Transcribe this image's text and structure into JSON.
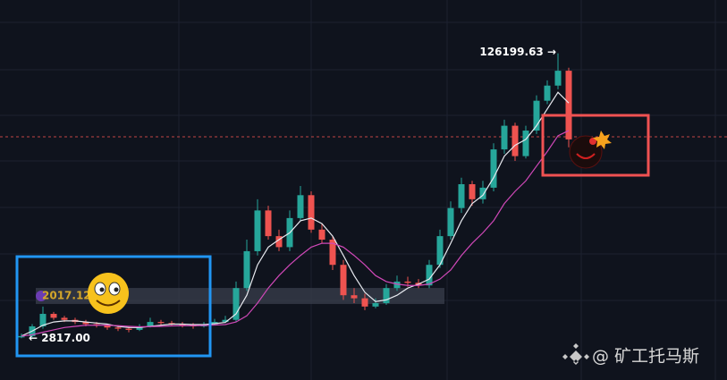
{
  "chart_data": {
    "type": "candlestick",
    "categories": [
      null,
      null,
      null,
      null,
      null,
      null,
      null,
      null,
      null,
      null,
      null,
      null,
      null,
      null,
      null,
      null,
      null,
      null,
      null,
      null,
      null,
      null,
      null,
      null,
      null,
      null,
      null,
      null,
      null,
      null,
      null,
      null,
      null,
      null,
      null,
      null,
      null,
      null,
      null,
      null,
      null,
      null,
      null,
      null,
      null,
      null,
      null,
      null,
      null,
      null,
      null,
      null
    ],
    "open": [
      2850,
      2900,
      3300,
      3900,
      3700,
      3600,
      3500,
      3400,
      3350,
      3250,
      3200,
      3150,
      3300,
      3500,
      3450,
      3400,
      3350,
      3300,
      3400,
      3500,
      3600,
      5500,
      9000,
      15500,
      11000,
      9500,
      14000,
      19000,
      12000,
      10500,
      7500,
      5000,
      4800,
      4300,
      4500,
      5500,
      6000,
      5900,
      5700,
      7500,
      11000,
      16000,
      22000,
      18000,
      21000,
      35000,
      48000,
      32000,
      45000,
      67000,
      82000,
      100000
    ],
    "high": [
      3000,
      3400,
      4300,
      4000,
      3800,
      3700,
      3600,
      3500,
      3400,
      3350,
      3300,
      3400,
      3700,
      3600,
      3550,
      3500,
      3450,
      3500,
      3650,
      3800,
      6000,
      10500,
      18000,
      16500,
      12000,
      15500,
      21500,
      20000,
      13000,
      11000,
      8000,
      5500,
      5100,
      4800,
      5800,
      6500,
      6400,
      6200,
      8000,
      12000,
      17500,
      24000,
      23000,
      23000,
      38000,
      52000,
      50000,
      48000,
      72000,
      88000,
      126199.63,
      104000
    ],
    "low": [
      2817,
      2850,
      3200,
      3600,
      3500,
      3400,
      3300,
      3250,
      3150,
      3100,
      3050,
      3100,
      3250,
      3350,
      3300,
      3250,
      3200,
      3250,
      3350,
      3450,
      3500,
      5300,
      8500,
      10500,
      9000,
      9000,
      13500,
      11500,
      10000,
      7000,
      4700,
      4500,
      4100,
      4200,
      4400,
      5300,
      5600,
      5500,
      5500,
      7200,
      10500,
      15000,
      16500,
      17000,
      20000,
      33000,
      30000,
      31000,
      43000,
      64000,
      78000,
      36000
    ],
    "close": [
      2900,
      3300,
      3900,
      3700,
      3600,
      3500,
      3400,
      3350,
      3250,
      3200,
      3150,
      3300,
      3500,
      3450,
      3400,
      3350,
      3300,
      3400,
      3500,
      3600,
      5500,
      9000,
      15500,
      11000,
      9500,
      14000,
      19000,
      12000,
      10500,
      7500,
      5000,
      4800,
      4300,
      4500,
      5500,
      6000,
      5900,
      5700,
      7500,
      11000,
      16000,
      22000,
      18000,
      21000,
      35000,
      48000,
      32000,
      45000,
      67000,
      82000,
      100000,
      40000
    ],
    "up_color": "#26a69a",
    "down_color": "#ef5350",
    "lines": [
      {
        "color": "#e8eaf0",
        "values": [
          2900,
          3100,
          3350,
          3500,
          3550,
          3550,
          3500,
          3450,
          3400,
          3300,
          3250,
          3250,
          3300,
          3350,
          3400,
          3400,
          3380,
          3380,
          3420,
          3480,
          3900,
          5000,
          7500,
          9500,
          10500,
          11500,
          13500,
          14000,
          13000,
          11000,
          8500,
          6500,
          5200,
          4600,
          4700,
          5000,
          5500,
          5800,
          6200,
          7500,
          10000,
          13500,
          17000,
          19000,
          24000,
          32000,
          37000,
          40000,
          48000,
          60000,
          75000,
          65000
        ]
      },
      {
        "color": "#d048b8",
        "values": [
          2900,
          2950,
          3050,
          3150,
          3250,
          3300,
          3350,
          3350,
          3350,
          3330,
          3300,
          3280,
          3290,
          3300,
          3320,
          3330,
          3330,
          3340,
          3360,
          3380,
          3500,
          3800,
          4500,
          5500,
          6500,
          7500,
          8500,
          9500,
          10000,
          10000,
          9500,
          8500,
          7500,
          6500,
          6000,
          5800,
          5700,
          5700,
          5800,
          6200,
          7000,
          8500,
          10000,
          11500,
          13500,
          17000,
          20000,
          23000,
          28000,
          34000,
          42000,
          45000
        ]
      }
    ],
    "log_scale": true,
    "ylim": [
      2000,
      200000
    ],
    "price_line": 41400,
    "highlight_band": [
      4450,
      5510
    ],
    "max_label": "126199.63 →",
    "min_label": "← 2817.00",
    "band_label": "2017.12",
    "watermark": "@ 矿工托马斯"
  }
}
